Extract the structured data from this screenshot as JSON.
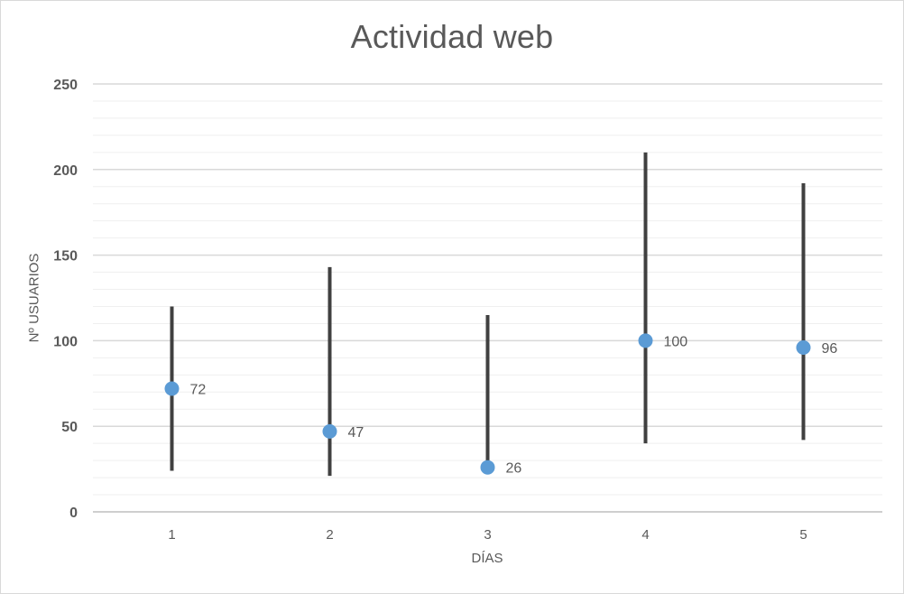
{
  "chart_data": {
    "type": "scatter",
    "title": "Actividad web",
    "xlabel": "DÍAS",
    "ylabel": "Nº USUARIOS",
    "x": [
      1,
      2,
      3,
      4,
      5
    ],
    "x_tick_labels": [
      "1",
      "2",
      "3",
      "4",
      "5"
    ],
    "ylim": [
      0,
      250
    ],
    "y_ticks": [
      0,
      50,
      100,
      150,
      200,
      250
    ],
    "y_tick_labels": [
      "0",
      "50",
      "100",
      "150",
      "200",
      "250"
    ],
    "grid": true,
    "series": [
      {
        "values": [
          72,
          47,
          26,
          100,
          96
        ],
        "data_labels": [
          "72",
          "47",
          "26",
          "100",
          "96"
        ]
      }
    ],
    "ranges": [
      {
        "low": 24,
        "high": 120
      },
      {
        "low": 21,
        "high": 143
      },
      {
        "low": 26,
        "high": 115
      },
      {
        "low": 40,
        "high": 210
      },
      {
        "low": 42,
        "high": 192
      }
    ],
    "colors": {
      "marker": "#5b9bd5",
      "range_line": "#404040",
      "gridline": "#d9d9d9",
      "minor_gridline": "#efefef",
      "axis": "#bfbfbf",
      "text": "#595959"
    }
  }
}
